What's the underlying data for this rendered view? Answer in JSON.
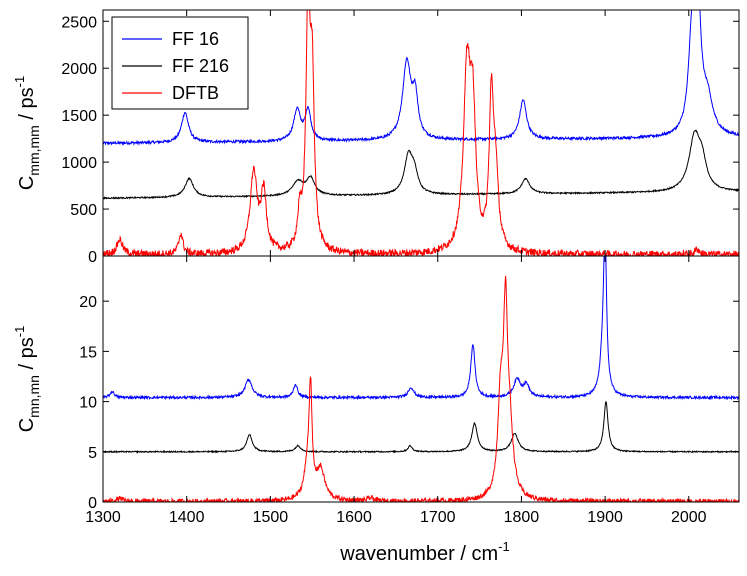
{
  "chart_data": [
    {
      "type": "line",
      "panel": "top",
      "ylabel_main": "C",
      "ylabel_sub": "mm,mm",
      "ylabel_unit": " / ps",
      "ylabel_exp": "-1",
      "xlim": [
        1300,
        2060
      ],
      "ylim": [
        0,
        2620
      ],
      "yticks": [
        0,
        500,
        1000,
        1500,
        2000,
        2500
      ],
      "grid": false,
      "legend_position": "top-left",
      "series": [
        {
          "name": "FF 16",
          "color": "#0000ff",
          "baseline": 1200,
          "slope": 0.08,
          "noise": 14,
          "peaks": [
            [
              1398,
              320,
              5
            ],
            [
              1532,
              330,
              5
            ],
            [
              1545,
              330,
              4
            ],
            [
              1663,
              820,
              6
            ],
            [
              1673,
              420,
              4
            ],
            [
              1802,
              420,
              5
            ],
            [
              2004,
              1050,
              5
            ],
            [
              2011,
              1300,
              4
            ],
            [
              2022,
              380,
              8
            ]
          ]
        },
        {
          "name": "FF 216",
          "color": "#000000",
          "baseline": 615,
          "slope": 0.09,
          "noise": 7,
          "peaks": [
            [
              1403,
              200,
              6
            ],
            [
              1533,
              150,
              8
            ],
            [
              1548,
              180,
              6
            ],
            [
              1665,
              400,
              6
            ],
            [
              1672,
              200,
              5
            ],
            [
              1805,
              160,
              6
            ],
            [
              2007,
              580,
              8
            ],
            [
              2016,
              250,
              6
            ]
          ]
        },
        {
          "name": "DFTB",
          "color": "#ff0000",
          "baseline": 15,
          "slope": 0,
          "noise": 40,
          "peaks": [
            [
              1320,
              160,
              4
            ],
            [
              1393,
              220,
              3
            ],
            [
              1480,
              850,
              5
            ],
            [
              1492,
              620,
              4
            ],
            [
              1535,
              350,
              3
            ],
            [
              1545,
              2450,
              3
            ],
            [
              1550,
              1700,
              3
            ],
            [
              1735,
              1900,
              5
            ],
            [
              1742,
              1300,
              4
            ],
            [
              1764,
              1500,
              3
            ],
            [
              1769,
              800,
              4
            ],
            [
              2010,
              60,
              3
            ]
          ]
        }
      ]
    },
    {
      "type": "line",
      "panel": "bottom",
      "ylabel_main": "C",
      "ylabel_sub": "mn,mn",
      "ylabel_unit": " / ps",
      "ylabel_exp": "-1",
      "xlabel_main": "wavenumber / cm",
      "xlabel_exp": "-1",
      "xlim": [
        1300,
        2060
      ],
      "xticks": [
        1300,
        1400,
        1500,
        1600,
        1700,
        1800,
        1900,
        2000
      ],
      "ylim": [
        0,
        24.5
      ],
      "yticks": [
        0,
        5,
        10,
        15,
        20
      ],
      "grid": false,
      "series": [
        {
          "name": "FF 16",
          "color": "#0000ff",
          "baseline": 10.4,
          "slope": 0,
          "noise": 0.12,
          "peaks": [
            [
              1311,
              0.6,
              3
            ],
            [
              1474,
              1.8,
              5
            ],
            [
              1530,
              1.3,
              3
            ],
            [
              1668,
              1.0,
              4
            ],
            [
              1742,
              5.3,
              3
            ],
            [
              1795,
              1.8,
              5
            ],
            [
              1806,
              1.2,
              4
            ],
            [
              1900,
              13.0,
              2
            ],
            [
              1898,
              5.0,
              4
            ]
          ]
        },
        {
          "name": "FF 216",
          "color": "#000000",
          "baseline": 5.0,
          "slope": 0,
          "noise": 0.06,
          "peaks": [
            [
              1475,
              1.7,
              4
            ],
            [
              1533,
              0.6,
              4
            ],
            [
              1667,
              0.6,
              3
            ],
            [
              1744,
              2.8,
              4
            ],
            [
              1792,
              1.8,
              5
            ],
            [
              1901,
              5.0,
              3
            ]
          ]
        },
        {
          "name": "DFTB",
          "color": "#ff0000",
          "baseline": 0.05,
          "slope": 0,
          "noise": 0.25,
          "peaks": [
            [
              1320,
              0.3,
              4
            ],
            [
              1545,
              3.5,
              5
            ],
            [
              1548,
              9.5,
              2
            ],
            [
              1560,
              3.0,
              6
            ],
            [
              1620,
              0.3,
              5
            ],
            [
              1775,
              9.0,
              4
            ],
            [
              1781,
              16.5,
              3
            ],
            [
              1786,
              6.0,
              5
            ]
          ]
        }
      ]
    }
  ]
}
